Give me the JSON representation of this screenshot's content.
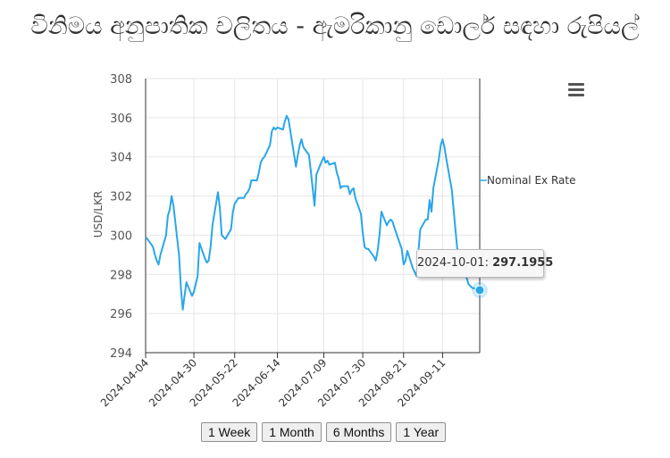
{
  "page": {
    "title": "විනිමය අනුපාතික චලිතය - ඇමරිකානු ඩොලර් සඳහා රුපියල්"
  },
  "chart_data": {
    "type": "line",
    "title": "විනිමය අනුපාතික චලිතය - ඇමරිකානු ඩොලර් සඳහා රුපියල්",
    "ylabel": "USD/LKR",
    "xlabel": "",
    "ylim": [
      294,
      308
    ],
    "yticks": [
      "294",
      "296",
      "298",
      "300",
      "302",
      "304",
      "306",
      "308"
    ],
    "xticks": [
      "2024-04-04",
      "2024-04-30",
      "2024-05-22",
      "2024-06-14",
      "2024-07-09",
      "2024-07-30",
      "2024-08-21",
      "2024-09-11"
    ],
    "grid": true,
    "legend_position": "right",
    "line_color": "#2aa6ea",
    "series": [
      {
        "name": "Nominal Ex Rate",
        "x": [
          "2024-04-04",
          "2024-04-05",
          "2024-04-08",
          "2024-04-09",
          "2024-04-10",
          "2024-04-11",
          "2024-04-12",
          "2024-04-15",
          "2024-04-16",
          "2024-04-17",
          "2024-04-18",
          "2024-04-19",
          "2024-04-22",
          "2024-04-23",
          "2024-04-24",
          "2024-04-25",
          "2024-04-26",
          "2024-04-29",
          "2024-04-30",
          "2024-05-02",
          "2024-05-03",
          "2024-05-06",
          "2024-05-07",
          "2024-05-08",
          "2024-05-09",
          "2024-05-10",
          "2024-05-13",
          "2024-05-14",
          "2024-05-15",
          "2024-05-16",
          "2024-05-17",
          "2024-05-20",
          "2024-05-21",
          "2024-05-22",
          "2024-05-24",
          "2024-05-27",
          "2024-05-28",
          "2024-05-29",
          "2024-05-30",
          "2024-05-31",
          "2024-06-03",
          "2024-06-04",
          "2024-06-05",
          "2024-06-06",
          "2024-06-07",
          "2024-06-10",
          "2024-06-11",
          "2024-06-12",
          "2024-06-13",
          "2024-06-14",
          "2024-06-17",
          "2024-06-18",
          "2024-06-19",
          "2024-06-20",
          "2024-06-24",
          "2024-06-25",
          "2024-06-26",
          "2024-06-27",
          "2024-06-28",
          "2024-07-01",
          "2024-07-02",
          "2024-07-03",
          "2024-07-04",
          "2024-07-05",
          "2024-07-08",
          "2024-07-09",
          "2024-07-10",
          "2024-07-11",
          "2024-07-12",
          "2024-07-15",
          "2024-07-16",
          "2024-07-17",
          "2024-07-18",
          "2024-07-19",
          "2024-07-22",
          "2024-07-23",
          "2024-07-24",
          "2024-07-25",
          "2024-07-26",
          "2024-07-29",
          "2024-07-30",
          "2024-07-31",
          "2024-08-01",
          "2024-08-02",
          "2024-08-05",
          "2024-08-06",
          "2024-08-07",
          "2024-08-08",
          "2024-08-09",
          "2024-08-12",
          "2024-08-13",
          "2024-08-14",
          "2024-08-15",
          "2024-08-16",
          "2024-08-20",
          "2024-08-21",
          "2024-08-22",
          "2024-08-23",
          "2024-08-26",
          "2024-08-27",
          "2024-08-28",
          "2024-08-29",
          "2024-08-30",
          "2024-09-02",
          "2024-09-03",
          "2024-09-04",
          "2024-09-05",
          "2024-09-06",
          "2024-09-09",
          "2024-09-10",
          "2024-09-11",
          "2024-09-12",
          "2024-09-13",
          "2024-09-16",
          "2024-09-18",
          "2024-09-19",
          "2024-09-20",
          "2024-09-23",
          "2024-09-24",
          "2024-09-25",
          "2024-09-26",
          "2024-09-27",
          "2024-09-30",
          "2024-10-01"
        ],
        "values": [
          299.9,
          299.8,
          299.4,
          299.0,
          298.7,
          298.5,
          299.0,
          300.0,
          301.0,
          301.3,
          302.0,
          301.5,
          299.0,
          297.3,
          296.2,
          296.9,
          297.6,
          296.9,
          297.1,
          297.9,
          299.6,
          298.8,
          298.6,
          298.7,
          299.4,
          300.5,
          302.2,
          301.4,
          300.0,
          299.9,
          299.8,
          300.3,
          301.2,
          301.6,
          301.9,
          301.9,
          302.1,
          302.2,
          302.4,
          302.8,
          302.8,
          303.2,
          303.7,
          303.9,
          304.0,
          304.6,
          305.3,
          305.5,
          305.4,
          305.5,
          305.4,
          305.8,
          306.1,
          305.9,
          303.5,
          304.1,
          304.6,
          304.9,
          304.5,
          304.1,
          303.3,
          302.4,
          301.5,
          303.1,
          303.8,
          304.0,
          303.7,
          303.8,
          303.6,
          303.7,
          303.2,
          302.9,
          302.4,
          302.5,
          302.5,
          302.1,
          302.3,
          302.4,
          301.9,
          301.1,
          300.1,
          299.4,
          299.3,
          299.3,
          298.9,
          298.7,
          299.2,
          300.0,
          301.2,
          300.5,
          300.7,
          300.8,
          300.7,
          300.4,
          299.3,
          298.5,
          298.7,
          299.2,
          298.3,
          298.1,
          297.9,
          299.2,
          300.3,
          300.8,
          300.8,
          301.8,
          301.2,
          302.4,
          303.9,
          304.6,
          304.9,
          304.5,
          303.9,
          302.3,
          300.2,
          299.2,
          298.4,
          298.0,
          297.8,
          297.5,
          297.4,
          297.3,
          297.25,
          297.1955
        ]
      }
    ],
    "highlighted_point": {
      "x": "2024-10-01",
      "y": 297.1955
    }
  },
  "tooltip": {
    "date": "2024-10-01",
    "separator": ": ",
    "value": "297.1955"
  },
  "range_buttons": [
    "1 Week",
    "1 Month",
    "6 Months",
    "1 Year"
  ],
  "menu": {
    "icon": "hamburger-menu-icon"
  }
}
